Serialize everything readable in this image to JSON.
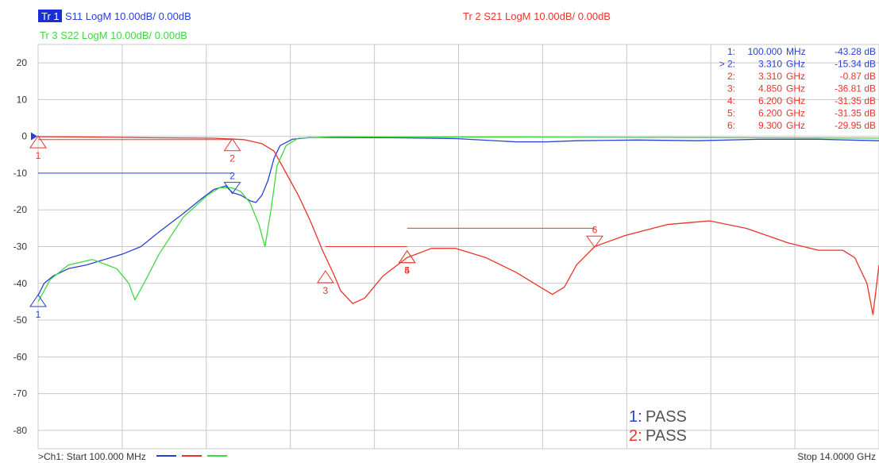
{
  "colors": {
    "s11": "#2a3fd8",
    "s21": "#e8342a",
    "s22": "#3fd93f",
    "grid": "#c8c8c8",
    "text": "#333333",
    "tr1_badge_bg": "#1b2fd6"
  },
  "header": {
    "tr1_badge": "Tr 1",
    "tr1_label": "S11 LogM 10.00dB/  0.00dB",
    "tr2_label": "Tr 2  S21 LogM 10.00dB/  0.00dB",
    "tr3_label": "Tr 3  S22 LogM 10.00dB/  0.00dB"
  },
  "footer": {
    "channel_label": ">Ch1:  Start  100.000 MHz",
    "stop_label": "Stop  14.0000 GHz"
  },
  "limit_test": [
    {
      "num": "1:",
      "label": "PASS",
      "trace": "s11"
    },
    {
      "num": "2:",
      "label": "PASS",
      "trace": "s21"
    }
  ],
  "marker_table": [
    {
      "id": "1:",
      "freq": "100.000",
      "unit": "MHz",
      "value": "-43.28 dB",
      "trace": "s11"
    },
    {
      "id": "> 2:",
      "freq": "3.310",
      "unit": "GHz",
      "value": "-15.34 dB",
      "trace": "s11"
    },
    {
      "id": "2:",
      "freq": "3.310",
      "unit": "GHz",
      "value": "-0.87 dB",
      "trace": "s21"
    },
    {
      "id": "3:",
      "freq": "4.850",
      "unit": "GHz",
      "value": "-36.81 dB",
      "trace": "s21"
    },
    {
      "id": "4:",
      "freq": "6.200",
      "unit": "GHz",
      "value": "-31.35 dB",
      "trace": "s21"
    },
    {
      "id": "5:",
      "freq": "6.200",
      "unit": "GHz",
      "value": "-31.35 dB",
      "trace": "s21"
    },
    {
      "id": "6:",
      "freq": "9.300",
      "unit": "GHz",
      "value": "-29.95 dB",
      "trace": "s21"
    }
  ],
  "chart_data": {
    "type": "line",
    "xlim": [
      0.1,
      14.0
    ],
    "ylim": [
      -85,
      25
    ],
    "y_ticks": [
      20,
      10,
      0,
      -10,
      -20,
      -30,
      -40,
      -50,
      -60,
      -70,
      -80
    ],
    "y_tick_labels": [
      "20",
      "10",
      "0",
      "-10",
      "-20",
      "-30",
      "-40",
      "-50",
      "-60",
      "-70",
      "-80"
    ],
    "x_divisions": 10,
    "grid": true,
    "series": [
      {
        "name": "S11",
        "trace": "s11",
        "points": [
          [
            0.1,
            -43.3
          ],
          [
            0.2,
            -40
          ],
          [
            0.35,
            -38
          ],
          [
            0.6,
            -36
          ],
          [
            0.9,
            -35
          ],
          [
            1.2,
            -33.5
          ],
          [
            1.5,
            -32
          ],
          [
            1.8,
            -30
          ],
          [
            2.1,
            -26
          ],
          [
            2.5,
            -21
          ],
          [
            2.8,
            -17
          ],
          [
            3.0,
            -14.5
          ],
          [
            3.2,
            -13.5
          ],
          [
            3.31,
            -15.3
          ],
          [
            3.45,
            -16
          ],
          [
            3.6,
            -17.5
          ],
          [
            3.7,
            -18
          ],
          [
            3.8,
            -16
          ],
          [
            3.9,
            -12
          ],
          [
            4.0,
            -6
          ],
          [
            4.1,
            -2.5
          ],
          [
            4.3,
            -0.8
          ],
          [
            4.6,
            -0.3
          ],
          [
            5.0,
            -0.3
          ],
          [
            6.0,
            -0.4
          ],
          [
            7.0,
            -0.6
          ],
          [
            8.0,
            -1.5
          ],
          [
            8.5,
            -1.5
          ],
          [
            9.0,
            -1.2
          ],
          [
            10.0,
            -1.0
          ],
          [
            11.0,
            -1.2
          ],
          [
            12.0,
            -0.8
          ],
          [
            13.0,
            -0.8
          ],
          [
            14.0,
            -1.2
          ]
        ]
      },
      {
        "name": "S21",
        "trace": "s21",
        "points": [
          [
            0.1,
            -0.1
          ],
          [
            1.0,
            -0.2
          ],
          [
            2.0,
            -0.4
          ],
          [
            3.0,
            -0.5
          ],
          [
            3.5,
            -0.9
          ],
          [
            3.8,
            -2
          ],
          [
            4.0,
            -4
          ],
          [
            4.2,
            -10
          ],
          [
            4.4,
            -16
          ],
          [
            4.6,
            -23
          ],
          [
            4.8,
            -31
          ],
          [
            5.0,
            -38
          ],
          [
            5.1,
            -42
          ],
          [
            5.3,
            -45.5
          ],
          [
            5.5,
            -44
          ],
          [
            5.8,
            -38
          ],
          [
            6.2,
            -33
          ],
          [
            6.6,
            -30.5
          ],
          [
            7.0,
            -30.5
          ],
          [
            7.5,
            -33
          ],
          [
            8.0,
            -37
          ],
          [
            8.3,
            -40
          ],
          [
            8.6,
            -43
          ],
          [
            8.8,
            -41
          ],
          [
            9.0,
            -35
          ],
          [
            9.3,
            -30
          ],
          [
            9.8,
            -27
          ],
          [
            10.5,
            -24
          ],
          [
            11.2,
            -23
          ],
          [
            11.8,
            -25
          ],
          [
            12.5,
            -29
          ],
          [
            13.0,
            -31
          ],
          [
            13.4,
            -31
          ],
          [
            13.6,
            -33
          ],
          [
            13.8,
            -40
          ],
          [
            13.9,
            -48.5
          ],
          [
            14.0,
            -35
          ]
        ]
      },
      {
        "name": "S22",
        "trace": "s22",
        "points": [
          [
            0.1,
            -45
          ],
          [
            0.3,
            -39
          ],
          [
            0.6,
            -35
          ],
          [
            1.0,
            -33.5
          ],
          [
            1.4,
            -36
          ],
          [
            1.6,
            -40
          ],
          [
            1.7,
            -44.5
          ],
          [
            1.85,
            -40
          ],
          [
            2.1,
            -32
          ],
          [
            2.5,
            -22
          ],
          [
            2.9,
            -16
          ],
          [
            3.1,
            -14
          ],
          [
            3.3,
            -14
          ],
          [
            3.45,
            -15
          ],
          [
            3.6,
            -18
          ],
          [
            3.75,
            -24
          ],
          [
            3.85,
            -30
          ],
          [
            3.95,
            -20
          ],
          [
            4.05,
            -8
          ],
          [
            4.2,
            -2.5
          ],
          [
            4.4,
            -0.5
          ],
          [
            5.0,
            -0.1
          ],
          [
            6.0,
            -0.2
          ],
          [
            8.0,
            -0.2
          ],
          [
            10.0,
            -0.3
          ],
          [
            12.0,
            -0.4
          ],
          [
            14.0,
            -0.5
          ]
        ]
      }
    ],
    "markers": [
      {
        "label": "1",
        "trace": "s21",
        "x": 0.1,
        "y": -0.1,
        "dir": "up",
        "label_pos": "below"
      },
      {
        "label": "1",
        "trace": "s11",
        "x": 0.1,
        "y": -43.3,
        "dir": "up",
        "label_pos": "below"
      },
      {
        "label": "2",
        "trace": "s21",
        "x": 3.31,
        "y": -0.87,
        "dir": "up",
        "label_pos": "below"
      },
      {
        "label": "2",
        "trace": "s11",
        "x": 3.31,
        "y": -15.34,
        "dir": "down",
        "label_pos": "above"
      },
      {
        "label": "3",
        "trace": "s21",
        "x": 4.85,
        "y": -36.81,
        "dir": "up",
        "label_pos": "below"
      },
      {
        "label": "4",
        "trace": "s21",
        "x": 6.2,
        "y": -31.35,
        "dir": "up",
        "label_pos": "below"
      },
      {
        "label": "5",
        "trace": "s21",
        "x": 6.2,
        "y": -31.35,
        "dir": "up",
        "label_pos": "below"
      },
      {
        "label": "6",
        "trace": "s21",
        "x": 9.3,
        "y": -29.95,
        "dir": "down",
        "label_pos": "above"
      }
    ],
    "ref_lines": [
      {
        "trace": "s11",
        "x1": 0.1,
        "x2": 3.31,
        "y": -10
      },
      {
        "trace": "s21",
        "x1": 0.1,
        "x2": 3.31,
        "y": -0.87
      },
      {
        "trace": "s21",
        "x1": 4.85,
        "x2": 6.2,
        "y": -30
      },
      {
        "trace": "s21",
        "x1": 6.2,
        "x2": 9.3,
        "y": -25
      }
    ]
  }
}
